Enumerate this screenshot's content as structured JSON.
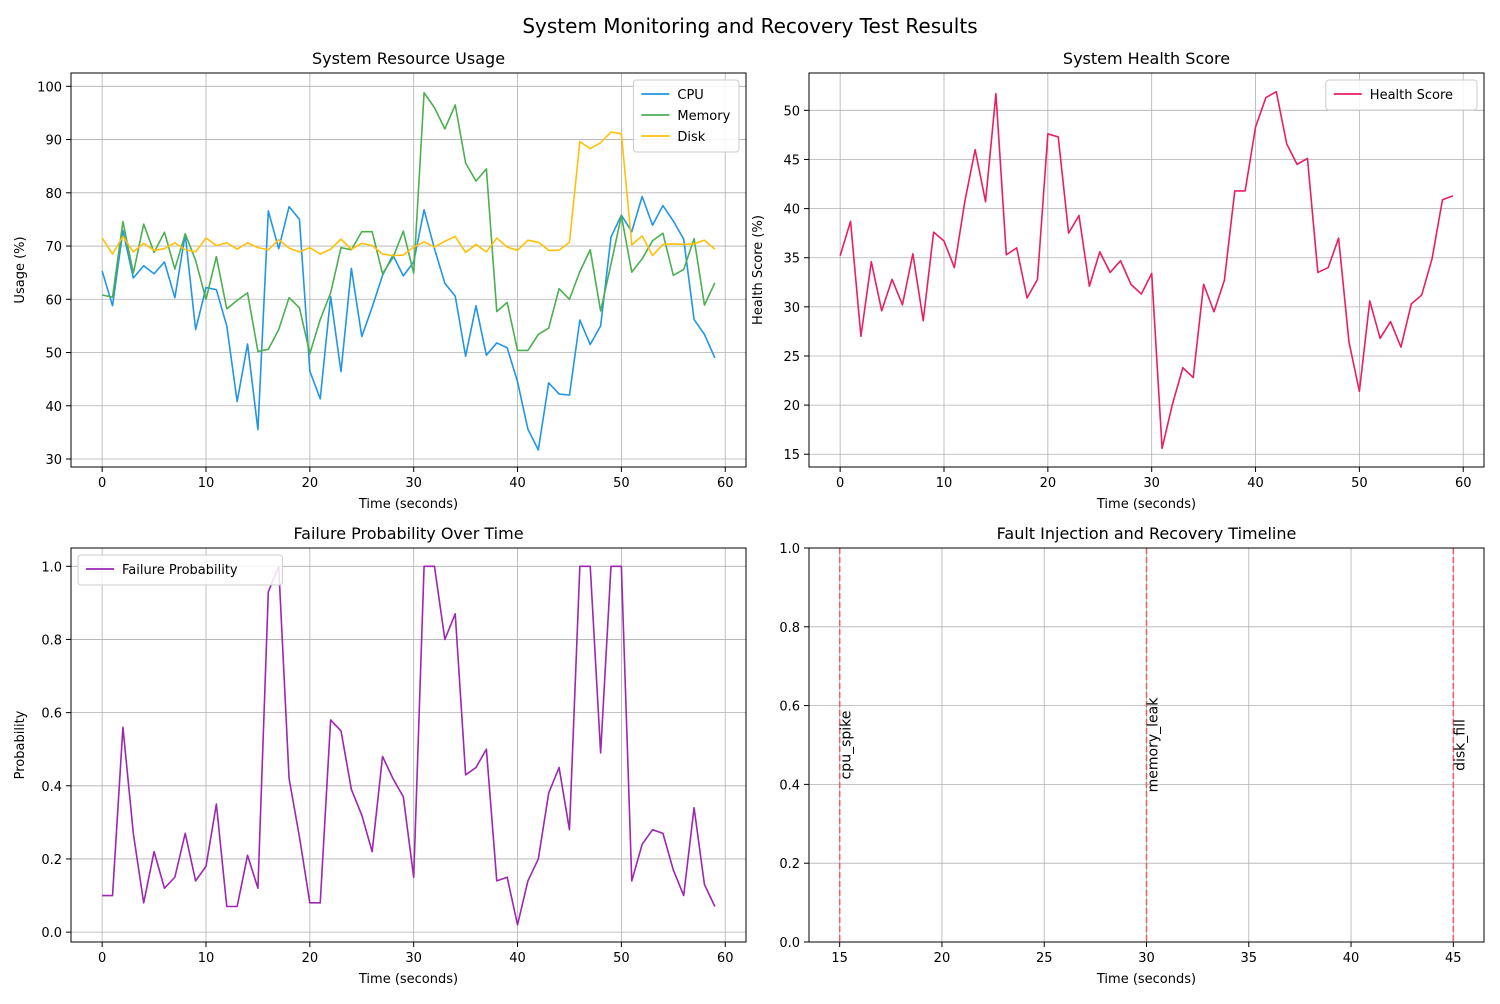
{
  "figure": {
    "title": "System Monitoring and Recovery Test Results",
    "colors": {
      "cpu": "#2196e6",
      "memory": "#4caf50",
      "disk": "#ffc107",
      "health": "#e91e63",
      "failure": "#9c27b0",
      "fault_line": "#ef5350",
      "grid": "#b0b0b0"
    }
  },
  "chart_data": [
    {
      "type": "line",
      "title": "System Resource Usage",
      "xlabel": "Time (seconds)",
      "ylabel": "Usage (%)",
      "xlim": [
        -3,
        62
      ],
      "ylim": [
        28.5,
        102.5
      ],
      "xticks": [
        0,
        10,
        20,
        30,
        40,
        50,
        60
      ],
      "yticks": [
        30,
        40,
        50,
        60,
        70,
        80,
        90,
        100
      ],
      "grid": true,
      "legend": "top-right",
      "x": [
        0,
        1,
        2,
        3,
        4,
        5,
        6,
        7,
        8,
        9,
        10,
        11,
        12,
        13,
        14,
        15,
        16,
        17,
        18,
        19,
        20,
        21,
        22,
        23,
        24,
        25,
        26,
        27,
        28,
        29,
        30,
        31,
        32,
        33,
        34,
        35,
        36,
        37,
        38,
        39,
        40,
        41,
        42,
        43,
        44,
        45,
        46,
        47,
        48,
        49,
        50,
        51,
        52,
        53,
        54,
        55,
        56,
        57,
        58,
        59
      ],
      "series": [
        {
          "name": "CPU",
          "color": "#2196e6",
          "values": [
            65.3,
            58.8,
            72.9,
            64.0,
            66.3,
            64.8,
            67.0,
            60.3,
            72.2,
            54.3,
            62.2,
            61.8,
            55.0,
            40.8,
            51.6,
            35.5,
            76.6,
            69.5,
            77.4,
            75.0,
            46.5,
            41.3,
            60.5,
            46.4,
            65.8,
            53.0,
            58.5,
            64.5,
            68.3,
            64.4,
            67.0,
            76.8,
            69.5,
            63.0,
            60.6,
            49.3,
            58.8,
            49.5,
            51.8,
            50.9,
            44.5,
            35.6,
            31.7,
            44.3,
            42.2,
            42.0,
            56.1,
            51.5,
            55.0,
            71.7,
            75.8,
            72.7,
            79.3,
            73.9,
            77.6,
            74.7,
            71.3,
            56.2,
            53.4,
            49.0
          ]
        },
        {
          "name": "Memory",
          "color": "#4caf50",
          "values": [
            60.8,
            60.4,
            74.6,
            64.9,
            74.1,
            68.8,
            72.6,
            65.7,
            72.3,
            67.3,
            60.0,
            68.0,
            58.2,
            59.8,
            61.2,
            50.2,
            50.6,
            54.3,
            60.3,
            58.4,
            49.8,
            56.2,
            61.2,
            69.7,
            69.3,
            72.7,
            72.7,
            64.8,
            67.8,
            72.8,
            64.9,
            98.8,
            96.0,
            92.0,
            96.5,
            85.6,
            82.2,
            84.5,
            57.7,
            59.4,
            50.4,
            50.4,
            53.4,
            54.6,
            62.0,
            60.0,
            65.2,
            69.3,
            57.8,
            66.6,
            75.7,
            65.1,
            67.6,
            71.0,
            72.4,
            64.5,
            65.6,
            71.4,
            58.9,
            63.1
          ]
        },
        {
          "name": "Disk",
          "color": "#ffc107",
          "values": [
            71.5,
            68.5,
            71.8,
            68.9,
            70.5,
            69.2,
            69.5,
            70.6,
            69.3,
            68.9,
            71.5,
            70.1,
            70.6,
            69.4,
            70.6,
            69.7,
            69.3,
            71.2,
            69.6,
            68.9,
            69.7,
            68.5,
            69.4,
            71.3,
            69.4,
            70.5,
            70.1,
            68.5,
            68.2,
            68.3,
            69.8,
            70.8,
            69.8,
            70.9,
            71.8,
            68.8,
            70.3,
            68.9,
            71.5,
            69.8,
            69.2,
            71.1,
            70.7,
            69.2,
            69.2,
            70.7,
            89.6,
            88.3,
            89.4,
            91.4,
            91.1,
            70.2,
            71.9,
            68.2,
            70.3,
            70.4,
            70.3,
            70.4,
            71.1,
            69.4
          ]
        }
      ]
    },
    {
      "type": "line",
      "title": "System Health Score",
      "xlabel": "Time (seconds)",
      "ylabel": "Health Score (%)",
      "xlim": [
        -3,
        62
      ],
      "ylim": [
        13.7,
        53.8
      ],
      "xticks": [
        0,
        10,
        20,
        30,
        40,
        50,
        60
      ],
      "yticks": [
        15,
        20,
        25,
        30,
        35,
        40,
        45,
        50
      ],
      "grid": true,
      "legend": "top-right",
      "x": [
        0,
        1,
        2,
        3,
        4,
        5,
        6,
        7,
        8,
        9,
        10,
        11,
        12,
        13,
        14,
        15,
        16,
        17,
        18,
        19,
        20,
        21,
        22,
        23,
        24,
        25,
        26,
        27,
        28,
        29,
        30,
        31,
        32,
        33,
        34,
        35,
        36,
        37,
        38,
        39,
        40,
        41,
        42,
        43,
        44,
        45,
        46,
        47,
        48,
        49,
        50,
        51,
        52,
        53,
        54,
        55,
        56,
        57,
        58,
        59
      ],
      "series": [
        {
          "name": "Health Score",
          "color": "#e91e63",
          "values": [
            35.2,
            38.7,
            27.0,
            34.6,
            29.6,
            32.8,
            30.2,
            35.4,
            28.6,
            37.6,
            36.7,
            34.0,
            40.7,
            46.0,
            40.7,
            51.7,
            35.3,
            36.0,
            30.9,
            32.8,
            47.6,
            47.3,
            37.5,
            39.3,
            32.1,
            35.6,
            33.5,
            34.7,
            32.3,
            31.3,
            33.4,
            15.6,
            20.1,
            23.8,
            22.8,
            32.3,
            29.5,
            32.7,
            41.8,
            41.8,
            48.3,
            51.3,
            51.9,
            46.6,
            44.5,
            45.1,
            33.5,
            34.0,
            37.0,
            26.4,
            21.4,
            30.6,
            26.8,
            28.5,
            25.9,
            30.3,
            31.2,
            34.9,
            40.9,
            41.3
          ]
        }
      ]
    },
    {
      "type": "line",
      "title": "Failure Probability Over Time",
      "xlabel": "Time (seconds)",
      "ylabel": "Probability",
      "xlim": [
        -3,
        62
      ],
      "ylim": [
        -0.027,
        1.05
      ],
      "xticks": [
        0,
        10,
        20,
        30,
        40,
        50,
        60
      ],
      "yticks": [
        0.0,
        0.2,
        0.4,
        0.6,
        0.8,
        1.0
      ],
      "grid": true,
      "legend": "top-left",
      "x": [
        0,
        1,
        2,
        3,
        4,
        5,
        6,
        7,
        8,
        9,
        10,
        11,
        12,
        13,
        14,
        15,
        16,
        17,
        18,
        19,
        20,
        21,
        22,
        23,
        24,
        25,
        26,
        27,
        28,
        29,
        30,
        31,
        32,
        33,
        34,
        35,
        36,
        37,
        38,
        39,
        40,
        41,
        42,
        43,
        44,
        45,
        46,
        47,
        48,
        49,
        50,
        51,
        52,
        53,
        54,
        55,
        56,
        57,
        58,
        59
      ],
      "series": [
        {
          "name": "Failure Probability",
          "color": "#9c27b0",
          "values": [
            0.1,
            0.1,
            0.56,
            0.27,
            0.08,
            0.22,
            0.12,
            0.15,
            0.27,
            0.14,
            0.18,
            0.35,
            0.07,
            0.07,
            0.21,
            0.12,
            0.93,
            1.0,
            0.42,
            0.26,
            0.08,
            0.08,
            0.58,
            0.55,
            0.39,
            0.32,
            0.22,
            0.48,
            0.42,
            0.37,
            0.15,
            1.0,
            1.0,
            0.8,
            0.87,
            0.43,
            0.45,
            0.5,
            0.14,
            0.15,
            0.02,
            0.14,
            0.2,
            0.38,
            0.45,
            0.28,
            1.0,
            1.0,
            0.49,
            1.0,
            1.0,
            0.14,
            0.24,
            0.28,
            0.27,
            0.17,
            0.1,
            0.34,
            0.13,
            0.07
          ]
        }
      ]
    },
    {
      "type": "line",
      "title": "Fault Injection and Recovery Timeline",
      "xlabel": "Time (seconds)",
      "ylabel": "",
      "xlim": [
        13.5,
        46.5
      ],
      "ylim": [
        0.0,
        1.0
      ],
      "xticks": [
        15,
        20,
        25,
        30,
        35,
        40,
        45
      ],
      "yticks": [
        0.0,
        0.2,
        0.4,
        0.6,
        0.8,
        1.0
      ],
      "grid": true,
      "events": [
        {
          "x": 15,
          "label": "cpu_spike"
        },
        {
          "x": 30,
          "label": "memory_leak"
        },
        {
          "x": 45,
          "label": "disk_fill"
        }
      ]
    }
  ]
}
